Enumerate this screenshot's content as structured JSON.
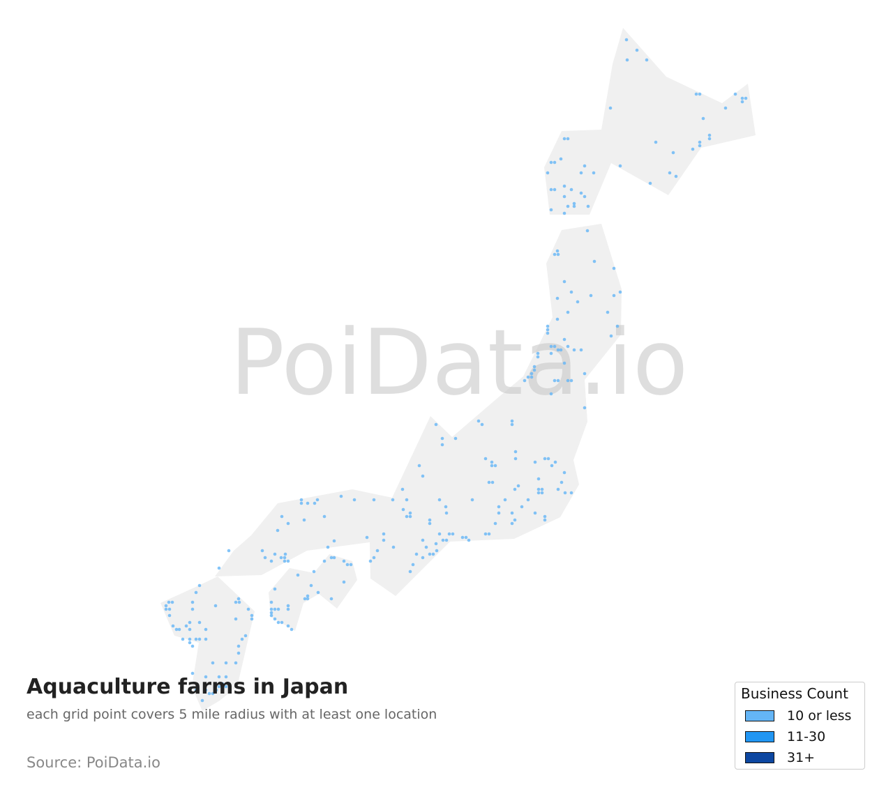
{
  "title": "Aquaculture farms in Japan",
  "subtitle": "each grid point covers 5 mile radius with at least one location",
  "source": "Source: PoiData.io",
  "watermark": "PoiData.io",
  "colors": {
    "land": "#f0f0f0",
    "dot": "#64b5f6",
    "watermark": "#c8c8c8"
  },
  "legend": {
    "title": "Business Count",
    "items": [
      {
        "label": "10 or less",
        "color": "#64b5f6"
      },
      {
        "label": "11-30",
        "color": "#2196f3"
      },
      {
        "label": "31+",
        "color": "#0d47a1"
      }
    ]
  }
}
